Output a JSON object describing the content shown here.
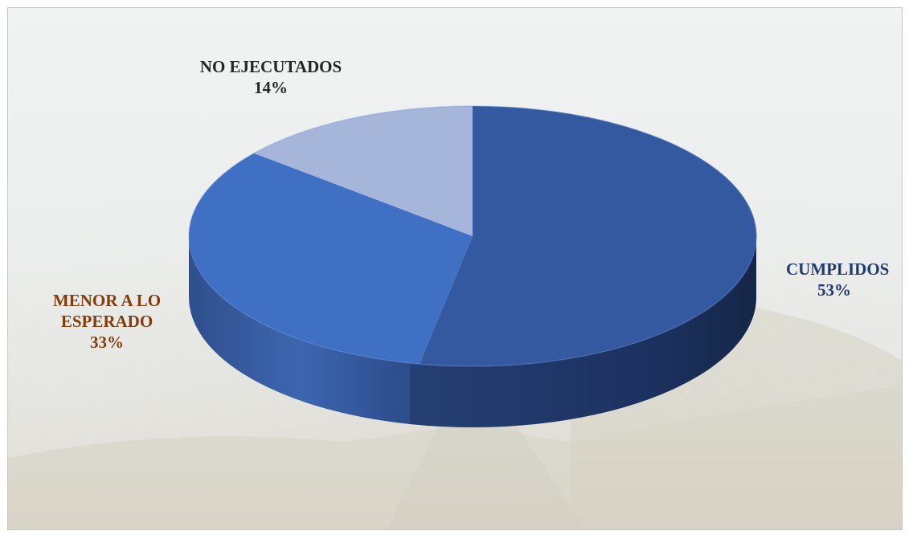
{
  "chart_data": {
    "type": "pie",
    "title": "",
    "slices": [
      {
        "name": "CUMPLIDOS",
        "value": 53,
        "label": "53%",
        "color": "#3559a0",
        "label_color": "#1f3a70"
      },
      {
        "name": "MENOR A LO ESPERADO",
        "value": 33,
        "label": "33%",
        "color": "#3f70c3",
        "label_color": "#843c0c"
      },
      {
        "name": "NO EJECUTADOS",
        "value": 14,
        "label": "14%",
        "color": "#a6b5da",
        "label_color": "#262626"
      }
    ],
    "style": "3d",
    "legend": "none",
    "data_labels": "outside"
  },
  "labels": {
    "cumplidos": {
      "line1": "CUMPLIDOS",
      "line2": "53%"
    },
    "menor": {
      "line1": "MENOR A LO",
      "line2": "ESPERADO",
      "line3": "33%"
    },
    "no_ejecutados": {
      "line1": "NO EJECUTADOS",
      "line2": "14%"
    }
  }
}
